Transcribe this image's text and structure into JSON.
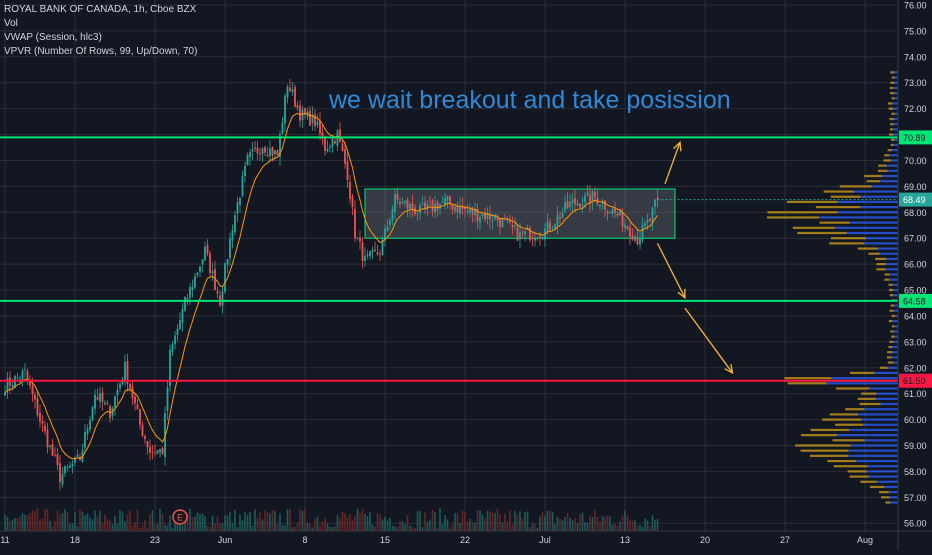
{
  "legend": {
    "symbol": "ROYAL BANK OF CANADA, 1h, Cboe BZX",
    "vol": "Vol",
    "vwap": "VWAP (Session, hlc3)",
    "vpvr": "VPVR (Number Of Rows, 99, Up/Down, 70)"
  },
  "annotation": "we wait breakout and take posission",
  "colors": {
    "background": "#131722",
    "grid": "#2a2e39",
    "axis_text": "#d1d4dc",
    "up": "#26a69a",
    "down": "#ef5350",
    "vwap": "#ff9800",
    "support_line": "#00e676",
    "red_line": "#ff1744",
    "range_box": "#00e676",
    "arrow": "#f5b731",
    "vpvr_up": "#2962ff",
    "vpvr_down": "#d4a017",
    "annotation": "#2e8ad9"
  },
  "chart_data": {
    "type": "candlestick",
    "y_range": [
      55.7,
      76.0
    ],
    "y_ticks": [
      56,
      57,
      58,
      59,
      60,
      61,
      62,
      63,
      64,
      65,
      66,
      67,
      68,
      69,
      70,
      71,
      72,
      73,
      74,
      75,
      76
    ],
    "y_tick_labels": [
      "56.00",
      "57.00",
      "58.00",
      "59.00",
      "60.00",
      "61.00",
      "62.00",
      "63.00",
      "64.00",
      "65.00",
      "66.00",
      "67.00",
      "68.00",
      "69.00",
      "70.00",
      "71.00",
      "72.00",
      "73.00",
      "74.00",
      "75.00",
      "76.00"
    ],
    "x_ticks": [
      "11",
      "18",
      "23",
      "Jun",
      "8",
      "15",
      "22",
      "Jul",
      "13",
      "20",
      "27",
      "Aug"
    ],
    "x_tick_bar_index": [
      0,
      28,
      60,
      88,
      120,
      152,
      184,
      216,
      248,
      280,
      312,
      344
    ],
    "bar_count": 262,
    "horizontal_levels": [
      {
        "price": 70.89,
        "label": "70.89",
        "color": "#00e676"
      },
      {
        "price": 64.58,
        "label": "64.58",
        "color": "#00e676"
      },
      {
        "price": 61.5,
        "label": "61.50",
        "color": "#ff1744"
      }
    ],
    "last_price": {
      "price": 68.49,
      "label": "68.49"
    },
    "range_box": {
      "bar_start": 144,
      "bar_end": 268,
      "price_low": 67.0,
      "price_high": 68.9
    },
    "arrows": [
      {
        "from_bar": 264,
        "from_price": 69.1,
        "to_bar": 270,
        "to_price": 70.7
      },
      {
        "from_bar": 261,
        "from_price": 66.8,
        "to_bar": 272,
        "to_price": 64.7
      },
      {
        "from_bar": 272,
        "from_price": 64.3,
        "to_bar": 291,
        "to_price": 61.8
      }
    ],
    "earnings_marker": {
      "bar": 70,
      "label": "E"
    },
    "price_path": [
      {
        "bar": 0,
        "price": 61.3
      },
      {
        "bar": 8,
        "price": 61.8
      },
      {
        "bar": 14,
        "price": 60.0
      },
      {
        "bar": 22,
        "price": 57.8
      },
      {
        "bar": 30,
        "price": 58.5
      },
      {
        "bar": 36,
        "price": 61.0
      },
      {
        "bar": 42,
        "price": 60.3
      },
      {
        "bar": 48,
        "price": 62.0
      },
      {
        "bar": 54,
        "price": 59.8
      },
      {
        "bar": 58,
        "price": 58.8
      },
      {
        "bar": 63,
        "price": 58.8
      },
      {
        "bar": 66,
        "price": 62.5
      },
      {
        "bar": 72,
        "price": 64.5
      },
      {
        "bar": 80,
        "price": 66.5
      },
      {
        "bar": 86,
        "price": 64.6
      },
      {
        "bar": 91,
        "price": 67.5
      },
      {
        "bar": 97,
        "price": 70.0
      },
      {
        "bar": 103,
        "price": 70.6
      },
      {
        "bar": 109,
        "price": 70.2
      },
      {
        "bar": 113,
        "price": 73.0
      },
      {
        "bar": 118,
        "price": 71.8
      },
      {
        "bar": 124,
        "price": 71.5
      },
      {
        "bar": 128,
        "price": 70.5
      },
      {
        "bar": 133,
        "price": 71.0
      },
      {
        "bar": 137,
        "price": 69.5
      },
      {
        "bar": 140,
        "price": 67.2
      },
      {
        "bar": 144,
        "price": 66.1
      },
      {
        "bar": 150,
        "price": 66.5
      },
      {
        "bar": 156,
        "price": 68.5
      },
      {
        "bar": 166,
        "price": 68.0
      },
      {
        "bar": 176,
        "price": 68.4
      },
      {
        "bar": 186,
        "price": 68.0
      },
      {
        "bar": 196,
        "price": 67.8
      },
      {
        "bar": 206,
        "price": 67.1
      },
      {
        "bar": 216,
        "price": 67.3
      },
      {
        "bar": 226,
        "price": 68.3
      },
      {
        "bar": 236,
        "price": 68.6
      },
      {
        "bar": 246,
        "price": 67.8
      },
      {
        "bar": 253,
        "price": 67.0
      },
      {
        "bar": 258,
        "price": 67.7
      },
      {
        "bar": 261,
        "price": 68.49
      }
    ]
  }
}
